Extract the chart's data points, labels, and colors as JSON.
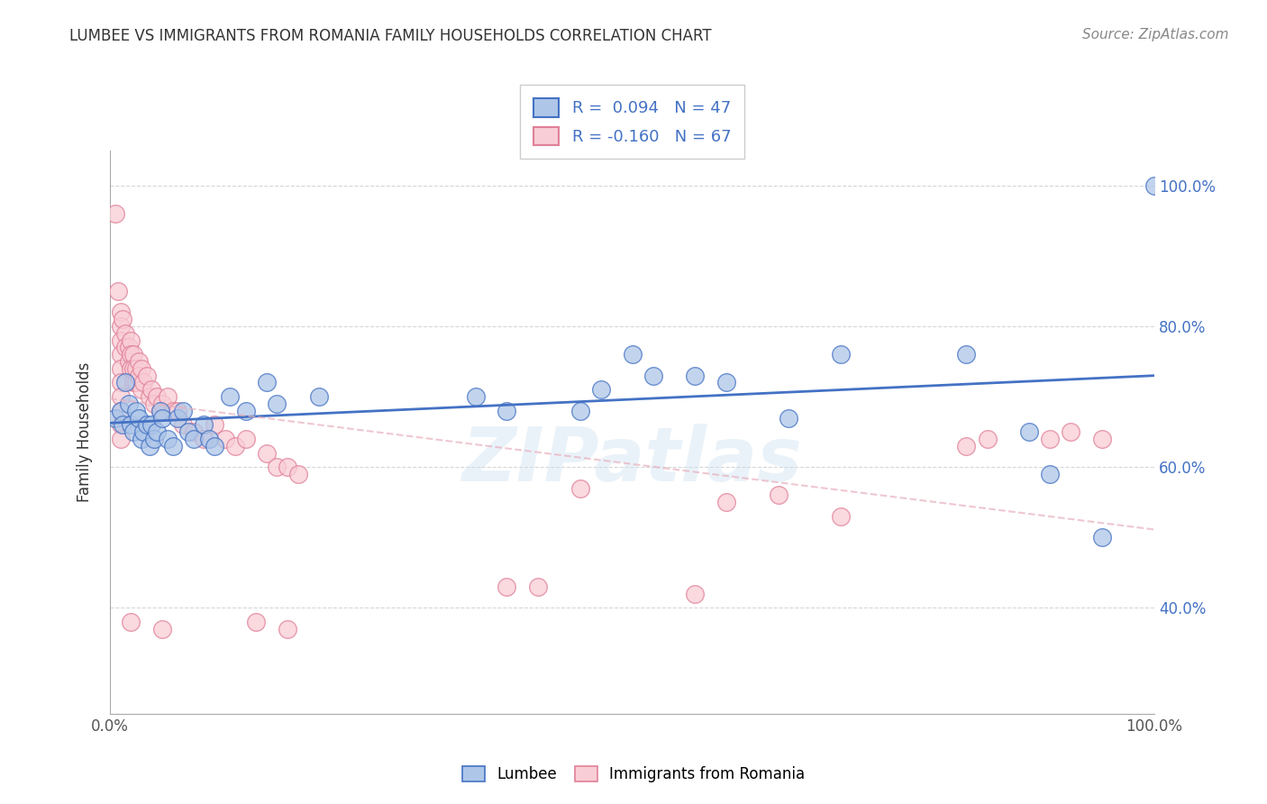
{
  "title": "LUMBEE VS IMMIGRANTS FROM ROMANIA FAMILY HOUSEHOLDS CORRELATION CHART",
  "source": "Source: ZipAtlas.com",
  "ylabel": "Family Households",
  "xlim": [
    0.0,
    1.0
  ],
  "ylim": [
    0.25,
    1.05
  ],
  "ytick_vals": [
    0.4,
    0.6,
    0.8,
    1.0
  ],
  "ytick_labels": [
    "40.0%",
    "60.0%",
    "80.0%",
    "100.0%"
  ],
  "xtick_vals": [
    0.0,
    1.0
  ],
  "xtick_labels": [
    "0.0%",
    "100.0%"
  ],
  "legend_entries": [
    {
      "label": "R =  0.094   N = 47",
      "color": "#aec6e8"
    },
    {
      "label": "R = -0.160   N = 67",
      "color": "#f4b8c1"
    }
  ],
  "lumbee_color": "#aec6e8",
  "lumbee_line_color": "#4472c4",
  "romania_color": "#f9cdd5",
  "romania_edge_color": "#e08098",
  "romania_line_color": "#e8b0bc",
  "watermark": "ZIPatlas",
  "background_color": "#ffffff",
  "grid_color": "#cccccc",
  "lumbee_points": [
    [
      0.005,
      0.67
    ],
    [
      0.01,
      0.68
    ],
    [
      0.012,
      0.66
    ],
    [
      0.015,
      0.72
    ],
    [
      0.018,
      0.69
    ],
    [
      0.02,
      0.66
    ],
    [
      0.022,
      0.65
    ],
    [
      0.025,
      0.68
    ],
    [
      0.028,
      0.67
    ],
    [
      0.03,
      0.64
    ],
    [
      0.032,
      0.65
    ],
    [
      0.035,
      0.66
    ],
    [
      0.038,
      0.63
    ],
    [
      0.04,
      0.66
    ],
    [
      0.042,
      0.64
    ],
    [
      0.045,
      0.65
    ],
    [
      0.048,
      0.68
    ],
    [
      0.05,
      0.67
    ],
    [
      0.055,
      0.64
    ],
    [
      0.06,
      0.63
    ],
    [
      0.065,
      0.67
    ],
    [
      0.07,
      0.68
    ],
    [
      0.075,
      0.65
    ],
    [
      0.08,
      0.64
    ],
    [
      0.09,
      0.66
    ],
    [
      0.095,
      0.64
    ],
    [
      0.1,
      0.63
    ],
    [
      0.115,
      0.7
    ],
    [
      0.13,
      0.68
    ],
    [
      0.15,
      0.72
    ],
    [
      0.16,
      0.69
    ],
    [
      0.2,
      0.7
    ],
    [
      0.35,
      0.7
    ],
    [
      0.38,
      0.68
    ],
    [
      0.45,
      0.68
    ],
    [
      0.47,
      0.71
    ],
    [
      0.5,
      0.76
    ],
    [
      0.52,
      0.73
    ],
    [
      0.56,
      0.73
    ],
    [
      0.59,
      0.72
    ],
    [
      0.65,
      0.67
    ],
    [
      0.7,
      0.76
    ],
    [
      0.82,
      0.76
    ],
    [
      0.88,
      0.65
    ],
    [
      0.9,
      0.59
    ],
    [
      0.95,
      0.5
    ],
    [
      1.0,
      1.0
    ]
  ],
  "romania_points": [
    [
      0.005,
      0.96
    ],
    [
      0.008,
      0.85
    ],
    [
      0.01,
      0.82
    ],
    [
      0.01,
      0.8
    ],
    [
      0.01,
      0.78
    ],
    [
      0.01,
      0.76
    ],
    [
      0.01,
      0.74
    ],
    [
      0.01,
      0.72
    ],
    [
      0.01,
      0.7
    ],
    [
      0.01,
      0.68
    ],
    [
      0.01,
      0.66
    ],
    [
      0.01,
      0.64
    ],
    [
      0.012,
      0.81
    ],
    [
      0.015,
      0.79
    ],
    [
      0.015,
      0.77
    ],
    [
      0.018,
      0.77
    ],
    [
      0.018,
      0.75
    ],
    [
      0.02,
      0.78
    ],
    [
      0.02,
      0.76
    ],
    [
      0.02,
      0.74
    ],
    [
      0.022,
      0.76
    ],
    [
      0.022,
      0.74
    ],
    [
      0.022,
      0.72
    ],
    [
      0.025,
      0.74
    ],
    [
      0.025,
      0.72
    ],
    [
      0.028,
      0.75
    ],
    [
      0.028,
      0.73
    ],
    [
      0.03,
      0.74
    ],
    [
      0.03,
      0.71
    ],
    [
      0.032,
      0.72
    ],
    [
      0.035,
      0.73
    ],
    [
      0.038,
      0.7
    ],
    [
      0.04,
      0.71
    ],
    [
      0.042,
      0.69
    ],
    [
      0.045,
      0.7
    ],
    [
      0.048,
      0.68
    ],
    [
      0.05,
      0.69
    ],
    [
      0.055,
      0.7
    ],
    [
      0.06,
      0.68
    ],
    [
      0.065,
      0.68
    ],
    [
      0.07,
      0.66
    ],
    [
      0.08,
      0.65
    ],
    [
      0.09,
      0.64
    ],
    [
      0.1,
      0.66
    ],
    [
      0.11,
      0.64
    ],
    [
      0.12,
      0.63
    ],
    [
      0.13,
      0.64
    ],
    [
      0.15,
      0.62
    ],
    [
      0.16,
      0.6
    ],
    [
      0.17,
      0.6
    ],
    [
      0.18,
      0.59
    ],
    [
      0.02,
      0.38
    ],
    [
      0.05,
      0.37
    ],
    [
      0.14,
      0.38
    ],
    [
      0.17,
      0.37
    ],
    [
      0.45,
      0.57
    ],
    [
      0.38,
      0.43
    ],
    [
      0.41,
      0.43
    ],
    [
      0.56,
      0.42
    ],
    [
      0.59,
      0.55
    ],
    [
      0.64,
      0.56
    ],
    [
      0.7,
      0.53
    ],
    [
      0.82,
      0.63
    ],
    [
      0.84,
      0.64
    ],
    [
      0.9,
      0.64
    ],
    [
      0.92,
      0.65
    ],
    [
      0.95,
      0.64
    ]
  ]
}
